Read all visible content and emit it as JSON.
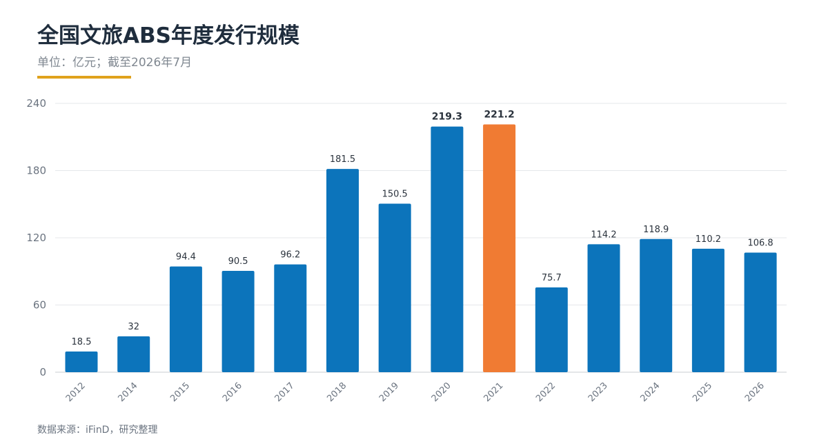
{
  "title": "全国文旅ABS年度发行规模",
  "subtitle": "单位：亿元；截至2026年7月",
  "source": "数据来源：iFinD，研究整理",
  "colors": {
    "bar": "#0c74bb",
    "highlight": "#f07b33",
    "accent": "#e0a21c",
    "grid": "#e5e7ea"
  },
  "chart_data": {
    "type": "bar",
    "categories": [
      "2012",
      "2014",
      "2015",
      "2016",
      "2017",
      "2018",
      "2019",
      "2020",
      "2021",
      "2022",
      "2023",
      "2024",
      "2025",
      "2026"
    ],
    "values": [
      18.5,
      32,
      94.4,
      90.5,
      96.2,
      181.5,
      150.5,
      219.3,
      221.2,
      75.7,
      114.2,
      118.9,
      110.2,
      106.8
    ],
    "value_labels": [
      "18.5",
      "32",
      "94.4",
      "90.5",
      "96.2",
      "181.5",
      "150.5",
      "219.3",
      "221.2",
      "75.7",
      "114.2",
      "118.9",
      "110.2",
      "106.8"
    ],
    "highlight_index": 8,
    "bold_label_indices": [
      7,
      8
    ],
    "ylim": [
      0,
      240
    ],
    "yticks": [
      0,
      60,
      120,
      180,
      240
    ],
    "grid": true,
    "xlabel": "",
    "ylabel": ""
  }
}
